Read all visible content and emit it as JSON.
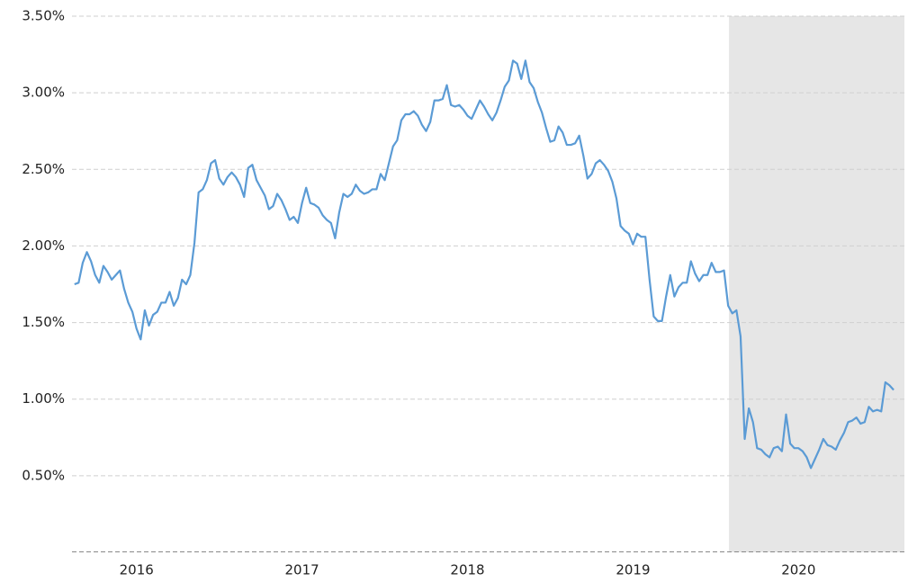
{
  "chart_data": {
    "type": "line",
    "color": "#5b9bd5",
    "xlim": [
      2016.11,
      2021.14
    ],
    "ylim": [
      0,
      3.5
    ],
    "grid": true,
    "shaded_range": [
      2020.08,
      2021.14
    ],
    "xticks": [
      {
        "value": 2016.5,
        "label": "2016"
      },
      {
        "value": 2017.5,
        "label": "2017"
      },
      {
        "value": 2018.5,
        "label": "2018"
      },
      {
        "value": 2019.5,
        "label": "2019"
      },
      {
        "value": 2020.5,
        "label": "2020"
      }
    ],
    "yticks": [
      {
        "value": 0.5,
        "label": "0.50%"
      },
      {
        "value": 1,
        "label": "1.00%"
      },
      {
        "value": 1.5,
        "label": "1.50%"
      },
      {
        "value": 2,
        "label": "2.00%"
      },
      {
        "value": 2.5,
        "label": "2.50%"
      },
      {
        "value": 3,
        "label": "3.00%"
      },
      {
        "value": 3.5,
        "label": "3.50%"
      }
    ],
    "x": [
      2016.125,
      2016.15,
      2016.175,
      2016.2,
      2016.225,
      2016.25,
      2016.275,
      2016.3,
      2016.325,
      2016.35,
      2016.375,
      2016.4,
      2016.425,
      2016.45,
      2016.475,
      2016.5,
      2016.525,
      2016.55,
      2016.575,
      2016.6,
      2016.625,
      2016.65,
      2016.675,
      2016.7,
      2016.725,
      2016.75,
      2016.775,
      2016.8,
      2016.825,
      2016.85,
      2016.875,
      2016.9,
      2016.925,
      2016.95,
      2016.975,
      2017,
      2017.025,
      2017.05,
      2017.075,
      2017.1,
      2017.125,
      2017.15,
      2017.175,
      2017.2,
      2017.225,
      2017.25,
      2017.275,
      2017.3,
      2017.325,
      2017.35,
      2017.375,
      2017.4,
      2017.425,
      2017.45,
      2017.475,
      2017.5,
      2017.525,
      2017.55,
      2017.575,
      2017.6,
      2017.625,
      2017.65,
      2017.675,
      2017.7,
      2017.725,
      2017.75,
      2017.775,
      2017.8,
      2017.825,
      2017.85,
      2017.875,
      2017.9,
      2017.925,
      2017.95,
      2017.975,
      2018,
      2018.025,
      2018.05,
      2018.075,
      2018.1,
      2018.125,
      2018.15,
      2018.175,
      2018.2,
      2018.225,
      2018.25,
      2018.275,
      2018.3,
      2018.325,
      2018.35,
      2018.375,
      2018.4,
      2018.425,
      2018.45,
      2018.475,
      2018.5,
      2018.525,
      2018.55,
      2018.575,
      2018.6,
      2018.625,
      2018.65,
      2018.675,
      2018.7,
      2018.725,
      2018.75,
      2018.775,
      2018.8,
      2018.825,
      2018.85,
      2018.875,
      2018.9,
      2018.925,
      2018.95,
      2018.975,
      2019,
      2019.025,
      2019.05,
      2019.075,
      2019.1,
      2019.125,
      2019.15,
      2019.175,
      2019.2,
      2019.225,
      2019.25,
      2019.275,
      2019.3,
      2019.325,
      2019.35,
      2019.375,
      2019.4,
      2019.425,
      2019.45,
      2019.475,
      2019.5,
      2019.525,
      2019.55,
      2019.575,
      2019.6,
      2019.625,
      2019.65,
      2019.675,
      2019.7,
      2019.725,
      2019.75,
      2019.775,
      2019.8,
      2019.825,
      2019.85,
      2019.875,
      2019.9,
      2019.925,
      2019.95,
      2019.975,
      2020,
      2020.025,
      2020.05,
      2020.075,
      2020.1,
      2020.125,
      2020.15,
      2020.175,
      2020.2,
      2020.225,
      2020.25,
      2020.275,
      2020.3,
      2020.325,
      2020.35,
      2020.375,
      2020.4,
      2020.425,
      2020.45,
      2020.475,
      2020.5,
      2020.525,
      2020.55,
      2020.575,
      2020.6,
      2020.625,
      2020.65,
      2020.675,
      2020.7,
      2020.725,
      2020.75,
      2020.775,
      2020.8,
      2020.825,
      2020.85,
      2020.875,
      2020.9,
      2020.925,
      2020.95,
      2020.975,
      2021,
      2021.025,
      2021.05,
      2021.075
    ],
    "values": [
      1.75,
      1.76,
      1.89,
      1.96,
      1.9,
      1.81,
      1.76,
      1.87,
      1.83,
      1.78,
      1.81,
      1.84,
      1.72,
      1.63,
      1.57,
      1.46,
      1.39,
      1.58,
      1.48,
      1.55,
      1.57,
      1.63,
      1.63,
      1.7,
      1.61,
      1.66,
      1.78,
      1.75,
      1.81,
      2.02,
      2.35,
      2.37,
      2.43,
      2.54,
      2.56,
      2.44,
      2.4,
      2.45,
      2.48,
      2.45,
      2.4,
      2.32,
      2.51,
      2.53,
      2.43,
      2.38,
      2.33,
      2.24,
      2.26,
      2.34,
      2.3,
      2.24,
      2.17,
      2.19,
      2.15,
      2.28,
      2.38,
      2.28,
      2.27,
      2.25,
      2.2,
      2.17,
      2.15,
      2.05,
      2.22,
      2.34,
      2.32,
      2.34,
      2.4,
      2.36,
      2.34,
      2.35,
      2.37,
      2.37,
      2.47,
      2.43,
      2.54,
      2.65,
      2.69,
      2.82,
      2.86,
      2.86,
      2.88,
      2.85,
      2.79,
      2.75,
      2.81,
      2.95,
      2.95,
      2.96,
      3.05,
      2.92,
      2.91,
      2.92,
      2.89,
      2.85,
      2.83,
      2.89,
      2.95,
      2.91,
      2.86,
      2.82,
      2.87,
      2.95,
      3.04,
      3.08,
      3.21,
      3.19,
      3.09,
      3.21,
      3.07,
      3.03,
      2.94,
      2.87,
      2.77,
      2.68,
      2.69,
      2.78,
      2.74,
      2.66,
      2.66,
      2.67,
      2.72,
      2.59,
      2.44,
      2.47,
      2.54,
      2.56,
      2.53,
      2.49,
      2.42,
      2.31,
      2.13,
      2.1,
      2.08,
      2.01,
      2.08,
      2.06,
      2.06,
      1.78,
      1.54,
      1.51,
      1.51,
      1.67,
      1.81,
      1.67,
      1.73,
      1.76,
      1.76,
      1.9,
      1.82,
      1.77,
      1.81,
      1.81,
      1.89,
      1.83,
      1.83,
      1.84,
      1.61,
      1.56,
      1.58,
      1.41,
      0.74,
      0.94,
      0.85,
      0.68,
      0.67,
      0.64,
      0.62,
      0.68,
      0.69,
      0.66,
      0.9,
      0.71,
      0.68,
      0.68,
      0.66,
      0.62,
      0.55,
      0.61,
      0.67,
      0.74,
      0.7,
      0.69,
      0.67,
      0.73,
      0.78,
      0.85,
      0.86,
      0.88,
      0.84,
      0.85,
      0.95,
      0.92,
      0.93,
      0.92,
      1.11,
      1.09,
      1.06
    ]
  }
}
